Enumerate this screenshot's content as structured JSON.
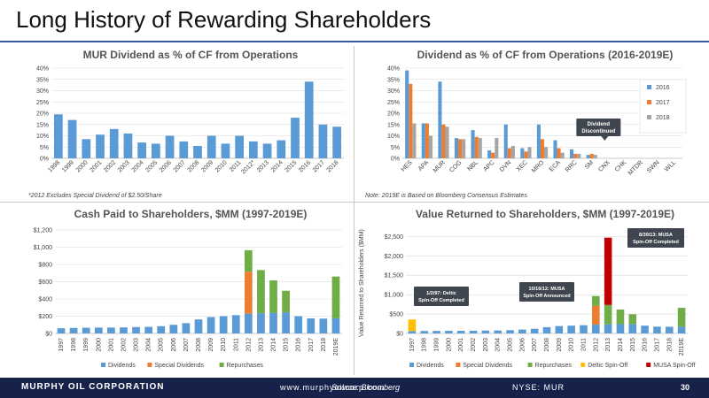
{
  "slide": {
    "title": "Long History of Rewarding Shareholders"
  },
  "notes": {
    "left": "*2012 Excludes Special Dividend of $2.50/Share",
    "right": "Note: 2019E is Based on Bloomberg Consensus Estimates"
  },
  "footer": {
    "company": "MURPHY OIL CORPORATION",
    "website": "www.murphyoilcorp.com",
    "source": "Source: Bloomberg",
    "ticker": "NYSE: MUR",
    "page": "30"
  },
  "colors": {
    "blue": "#5b9bd5",
    "orange": "#ed7d31",
    "green": "#70ad47",
    "gray": "#a5a5a5",
    "yellow": "#ffc000",
    "red": "#c00000",
    "navy": "#16224a"
  },
  "chart_data": [
    {
      "type": "bar",
      "title": "MUR Dividend as % of CF from Operations",
      "categories": [
        "1998",
        "1999",
        "2000",
        "2001",
        "2002",
        "2003",
        "2004",
        "2005",
        "2006",
        "2007",
        "2008",
        "2009",
        "2010",
        "2011",
        "2012*",
        "2013",
        "2014",
        "2015",
        "2016",
        "2017",
        "2018"
      ],
      "series": [
        {
          "values": [
            19.5,
            17,
            8.5,
            10.5,
            13,
            11,
            7,
            6.5,
            10,
            7.5,
            5.5,
            10,
            6.5,
            10,
            7.5,
            6.5,
            8,
            18,
            34,
            15,
            14
          ]
        }
      ],
      "yticks": [
        "0%",
        "5%",
        "10%",
        "15%",
        "20%",
        "25%",
        "30%",
        "35%",
        "40%"
      ],
      "ylim": [
        0,
        40
      ],
      "grid": true
    },
    {
      "type": "bar",
      "title": "Dividend as % of CF from Operations (2016-2019E)",
      "categories": [
        "HES",
        "APA",
        "MUR",
        "COG",
        "NBL",
        "APC",
        "DVN",
        "XEC",
        "MRO",
        "ECA",
        "RRC",
        "SM",
        "CNX",
        "CHK",
        "MTDR",
        "SWN",
        "WLL"
      ],
      "series": [
        {
          "name": "2016",
          "values": [
            39,
            15.5,
            34,
            9,
            12.5,
            3.5,
            15,
            4.5,
            15,
            8,
            4,
            1.5,
            0,
            0,
            0,
            0,
            0
          ]
        },
        {
          "name": "2017",
          "values": [
            33,
            15.5,
            15,
            8.5,
            9.5,
            2.5,
            4.5,
            3,
            8.5,
            4.5,
            2,
            2,
            0,
            0,
            0,
            0,
            0
          ]
        },
        {
          "name": "2018",
          "values": [
            15.5,
            10,
            14,
            8.5,
            9,
            9,
            5.5,
            5,
            5,
            2.5,
            2,
            1.5,
            0,
            0,
            0,
            0,
            0
          ]
        }
      ],
      "yticks": [
        "0%",
        "5%",
        "10%",
        "15%",
        "20%",
        "25%",
        "30%",
        "35%",
        "40%"
      ],
      "ylim": [
        0,
        40
      ],
      "grid": true,
      "legend": "right",
      "callout": "Dividend Discontinued"
    },
    {
      "type": "bar",
      "stacked": true,
      "title": "Cash Paid to Shareholders, $MM (1997-2019E)",
      "categories": [
        "1997",
        "1998",
        "1999",
        "2000",
        "2001",
        "2002",
        "2003",
        "2004",
        "2005",
        "2006",
        "2007",
        "2008",
        "2009",
        "2010",
        "2011",
        "2012",
        "2013",
        "2014",
        "2015",
        "2016",
        "2017",
        "2018",
        "2019E"
      ],
      "series": [
        {
          "name": "Dividends",
          "values": [
            60,
            64,
            66,
            68,
            68,
            70,
            74,
            76,
            84,
            100,
            120,
            162,
            190,
            200,
            212,
            230,
            235,
            240,
            245,
            200,
            175,
            172,
            175
          ]
        },
        {
          "name": "Special Dividends",
          "values": [
            0,
            0,
            0,
            0,
            0,
            0,
            0,
            0,
            0,
            0,
            0,
            0,
            0,
            0,
            0,
            485,
            0,
            0,
            0,
            0,
            0,
            0,
            0
          ]
        },
        {
          "name": "Repurchases",
          "values": [
            0,
            0,
            0,
            0,
            0,
            0,
            0,
            0,
            0,
            0,
            0,
            0,
            0,
            0,
            0,
            250,
            500,
            375,
            250,
            0,
            0,
            0,
            485
          ]
        }
      ],
      "yticks": [
        "$0",
        "$200",
        "$400",
        "$600",
        "$800",
        "$1,000",
        "$1,200"
      ],
      "ylim": [
        0,
        1200
      ],
      "grid": true,
      "legend": "bottom"
    },
    {
      "type": "bar",
      "stacked": true,
      "title": "Value Returned to Shareholders, $MM (1997-2019E)",
      "ylabel": "Value Returned to Shareholders ($MM)",
      "categories": [
        "1997",
        "1998",
        "1999",
        "2000",
        "2001",
        "2002",
        "2003",
        "2004",
        "2005",
        "2006",
        "2007",
        "2008",
        "2009",
        "2010",
        "2011",
        "2012",
        "2013",
        "2014",
        "2015",
        "2016",
        "2017",
        "2018",
        "2019E"
      ],
      "series": [
        {
          "name": "Dividends",
          "values": [
            60,
            64,
            66,
            68,
            68,
            70,
            74,
            76,
            84,
            100,
            120,
            162,
            190,
            200,
            212,
            230,
            235,
            240,
            245,
            200,
            175,
            172,
            175
          ]
        },
        {
          "name": "Special Dividends",
          "values": [
            0,
            0,
            0,
            0,
            0,
            0,
            0,
            0,
            0,
            0,
            0,
            0,
            0,
            0,
            0,
            485,
            0,
            0,
            0,
            0,
            0,
            0,
            0
          ]
        },
        {
          "name": "Repurchases",
          "values": [
            0,
            0,
            0,
            0,
            0,
            0,
            0,
            0,
            0,
            0,
            0,
            0,
            0,
            0,
            0,
            250,
            500,
            375,
            250,
            0,
            0,
            0,
            485
          ]
        },
        {
          "name": "Deltic Spin-Off",
          "values": [
            300,
            0,
            0,
            0,
            0,
            0,
            0,
            0,
            0,
            0,
            0,
            0,
            0,
            0,
            0,
            0,
            0,
            0,
            0,
            0,
            0,
            0,
            0
          ]
        },
        {
          "name": "MUSA Spin-Off",
          "values": [
            0,
            0,
            0,
            0,
            0,
            0,
            0,
            0,
            0,
            0,
            0,
            0,
            0,
            0,
            0,
            0,
            1735,
            0,
            0,
            0,
            0,
            0,
            0
          ]
        }
      ],
      "yticks": [
        "$0",
        "$500",
        "$1,000",
        "$1,500",
        "$2,000",
        "$2,500"
      ],
      "ylim": [
        0,
        2600
      ],
      "grid": true,
      "legend": "bottom",
      "annotations": [
        {
          "text": "1/2/97: Deltic Spin-Off Completed",
          "category": "1997"
        },
        {
          "text": "10/16/12: MUSA Spin-Off Announced",
          "category": "2012"
        },
        {
          "text": "8/30/13: MUSA Spin-Off Completed",
          "category": "2013"
        }
      ]
    }
  ]
}
